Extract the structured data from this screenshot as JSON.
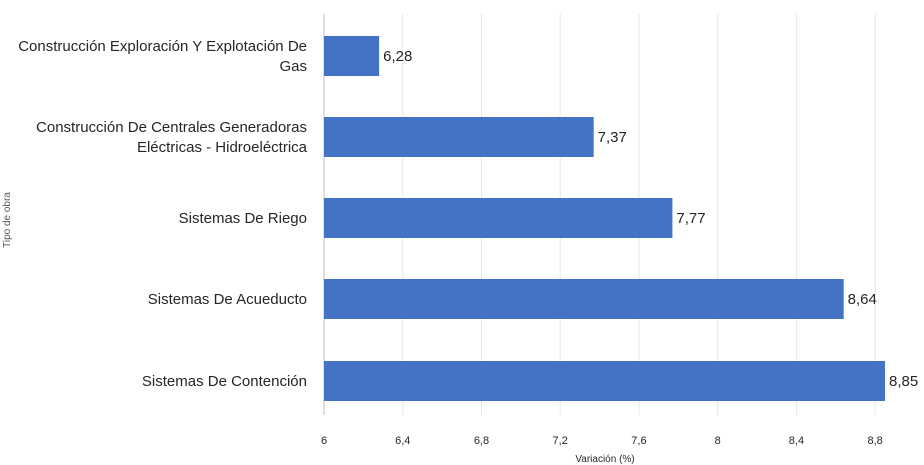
{
  "chart_data": {
    "type": "bar",
    "orientation": "horizontal",
    "categories": [
      "Construcción Exploración Y Explotación De Gas",
      "Construcción De Centrales Generadoras Eléctricas - Hidroeléctrica",
      "Sistemas De Riego",
      "Sistemas De Acueducto",
      "Sistemas De Contención"
    ],
    "category_lines": [
      [
        "Construcción Exploración Y Explotación De",
        "Gas"
      ],
      [
        "Construcción De Centrales Generadoras",
        "Eléctricas - Hidroeléctrica"
      ],
      [
        "Sistemas De Riego"
      ],
      [
        "Sistemas De Acueducto"
      ],
      [
        "Sistemas De Contención"
      ]
    ],
    "values": [
      6.28,
      7.37,
      7.77,
      8.64,
      8.85
    ],
    "value_labels": [
      "6,28",
      "7,37",
      "7,77",
      "8,64",
      "8,85"
    ],
    "xlabel": "Variación (%)",
    "ylabel": "Tipo de obra",
    "xlim": [
      6,
      8.85
    ],
    "xticks": [
      6,
      6.4,
      6.8,
      7.2,
      7.6,
      8,
      8.4,
      8.8
    ],
    "xtick_labels": [
      "6",
      "6,4",
      "6,8",
      "7,2",
      "7,6",
      "8",
      "8,4",
      "8,8"
    ],
    "grid": "vertical",
    "bar_color": "#4472C4",
    "grid_color": "#e6e6e6",
    "axis_color": "#bfbfbf"
  }
}
